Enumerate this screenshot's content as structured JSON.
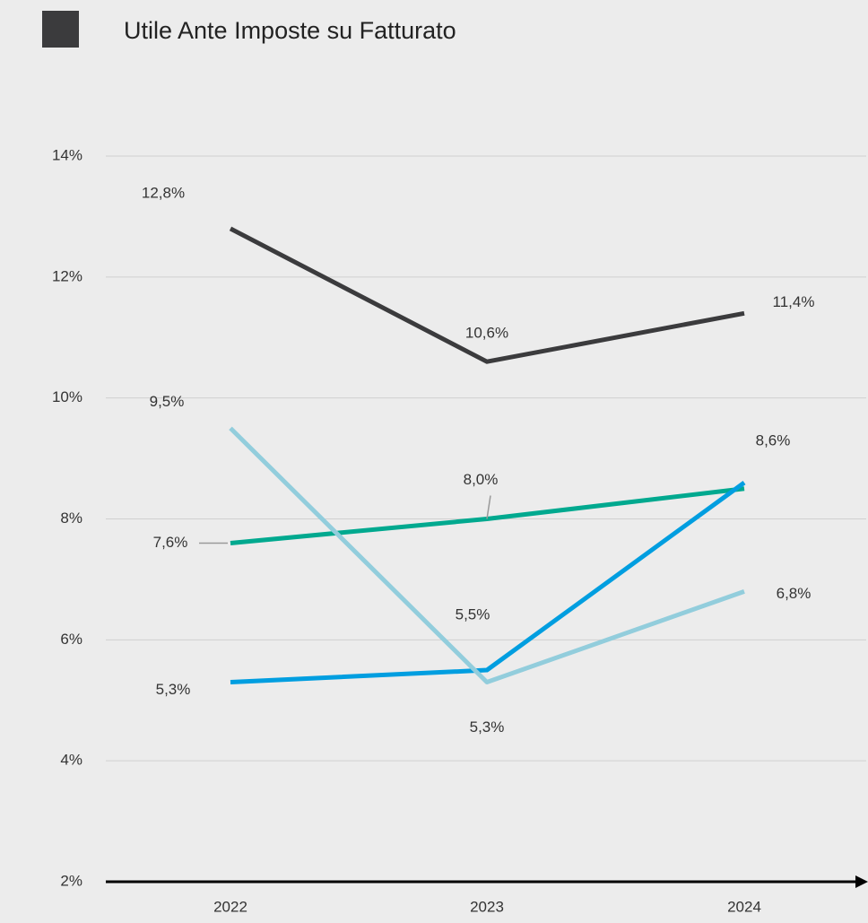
{
  "chart_data": {
    "type": "line",
    "title": "Utile Ante Imposte su Fatturato",
    "categories": [
      "2022",
      "2023",
      "2024"
    ],
    "series": [
      {
        "color": "#3b3b3d",
        "values": [
          12.8,
          10.6,
          11.4
        ],
        "value_labels": [
          "12,8%",
          "10,6%",
          "11,4%"
        ]
      },
      {
        "color": "#00a98f",
        "values": [
          7.6,
          8.0,
          8.5
        ],
        "value_labels": [
          "7,6%",
          "8,0%",
          null
        ]
      },
      {
        "color": "#009ee0",
        "values": [
          5.3,
          5.5,
          8.6
        ],
        "value_labels": [
          "5,3%",
          "5,5%",
          "8,6%"
        ]
      },
      {
        "color": "#92cddc",
        "values": [
          9.5,
          5.3,
          6.8
        ],
        "value_labels": [
          "9,5%",
          "5,3%",
          "6,8%"
        ]
      }
    ],
    "ylim": [
      2,
      14
    ],
    "yticks": [
      {
        "value": 2,
        "label": "2%"
      },
      {
        "value": 4,
        "label": "4%"
      },
      {
        "value": 6,
        "label": "6%"
      },
      {
        "value": 8,
        "label": "8%"
      },
      {
        "value": 10,
        "label": "10%"
      },
      {
        "value": 12,
        "label": "12%"
      },
      {
        "value": 14,
        "label": "14%"
      }
    ],
    "grid": true
  }
}
